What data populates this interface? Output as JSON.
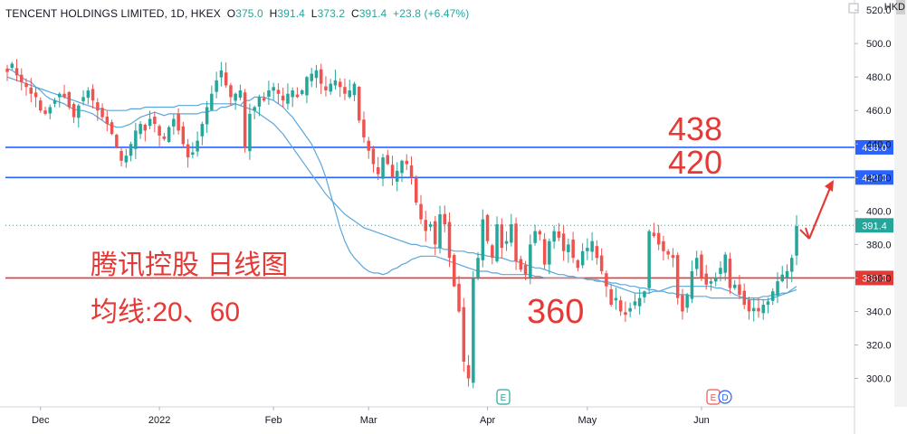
{
  "header": {
    "symbol": "TENCENT HOLDINGS LIMITED, 1D, HKEX",
    "o_label": "O",
    "o_value": "375.0",
    "h_label": "H",
    "h_value": "391.4",
    "l_label": "L",
    "l_value": "373.2",
    "c_label": "C",
    "c_value": "391.4",
    "change": "+23.8 (+6.47%)"
  },
  "currency": "HKD",
  "annotations": {
    "level_high": "438",
    "level_mid": "420",
    "level_low": "360",
    "title": "腾讯控股 日线图",
    "ma_note": "均线:20、60"
  },
  "colors": {
    "up": "#26a69a",
    "down": "#ef5350",
    "ma": "#5ba7dc",
    "resistance": "#2962ff",
    "support": "#e53935",
    "annotation": "#e53935"
  },
  "event_markers": [
    "E",
    "E",
    "D"
  ],
  "chart_data": {
    "type": "candlestick",
    "symbol": "TENCENT HOLDINGS LIMITED",
    "interval": "1D",
    "exchange": "HKEX",
    "x_ticks": [
      "Dec",
      "2022",
      "Feb",
      "Mar",
      "Apr",
      "May",
      "Jun"
    ],
    "y_ticks": [
      300,
      320,
      340,
      360,
      380,
      400,
      420,
      440,
      460,
      480,
      500,
      520
    ],
    "ylim": [
      283,
      526
    ],
    "last_price": "391.4",
    "horizontal_levels": [
      {
        "value": 438,
        "label": "438.0",
        "color": "#2962ff"
      },
      {
        "value": 420,
        "label": "420.0",
        "color": "#2962ff"
      },
      {
        "value": 360,
        "label": "360.0",
        "color": "#e53935"
      }
    ],
    "moving_averages": [
      20,
      60
    ],
    "closes": [
      483,
      488,
      481,
      477,
      474,
      470,
      468,
      460,
      458,
      462,
      466,
      470,
      468,
      462,
      456,
      463,
      468,
      472,
      466,
      460,
      456,
      452,
      446,
      438,
      430,
      433,
      440,
      448,
      452,
      448,
      455,
      452,
      445,
      443,
      450,
      455,
      448,
      440,
      432,
      435,
      442,
      452,
      462,
      470,
      478,
      484,
      475,
      468,
      470,
      472,
      438,
      458,
      462,
      468,
      466,
      472,
      474,
      470,
      466,
      470,
      472,
      468,
      472,
      480,
      482,
      484,
      476,
      472,
      476,
      478,
      474,
      470,
      472,
      476,
      454,
      444,
      436,
      428,
      422,
      432,
      428,
      420,
      424,
      430,
      428,
      420,
      405,
      395,
      388,
      392,
      380,
      398,
      392,
      372,
      355,
      340,
      310,
      300,
      360,
      372,
      395,
      382,
      372,
      392,
      378,
      382,
      392,
      370,
      365,
      362,
      380,
      388,
      386,
      368,
      382,
      388,
      384,
      376,
      380,
      372,
      366,
      376,
      378,
      382,
      372,
      364,
      355,
      344,
      348,
      340,
      338,
      342,
      346,
      348,
      352,
      388,
      385,
      380,
      376,
      374,
      372,
      348,
      340,
      350,
      364,
      372,
      360,
      356,
      358,
      360,
      366,
      374,
      354,
      356,
      350,
      344,
      340,
      342,
      340,
      344,
      346,
      352,
      358,
      362,
      364,
      372,
      391
    ],
    "ma20": [
      485,
      484,
      482,
      480,
      478,
      477,
      474,
      472,
      469,
      467,
      466,
      465,
      464,
      462,
      461,
      460,
      460,
      459,
      458,
      456,
      454,
      452,
      451,
      450,
      450,
      451,
      452,
      454,
      456,
      457,
      458,
      459,
      458,
      457,
      458,
      458,
      458,
      458,
      458,
      458,
      458,
      459,
      459,
      460,
      460,
      462,
      462,
      463,
      464,
      463,
      466,
      466,
      468,
      468,
      468,
      467,
      466,
      464,
      462,
      459,
      456,
      452,
      448,
      444,
      440,
      434,
      428,
      420,
      410,
      400,
      390,
      382,
      376,
      372,
      369,
      366,
      364,
      363,
      363,
      362,
      363,
      365,
      366,
      368,
      369,
      371,
      372,
      373,
      373,
      373,
      373,
      372,
      371,
      370,
      369,
      368,
      367,
      366,
      365,
      364,
      364,
      364,
      363,
      363,
      362,
      362,
      362,
      362,
      362,
      362,
      362,
      361,
      361,
      360,
      360,
      360,
      360,
      360,
      360,
      360,
      360,
      360,
      359,
      359,
      358,
      358,
      357,
      356,
      355,
      354,
      353,
      352,
      351,
      351,
      351,
      351,
      352,
      352,
      353,
      354,
      355,
      355,
      355,
      355,
      355,
      355,
      355,
      355,
      355,
      354,
      354,
      353,
      352,
      350,
      349,
      348,
      347,
      347,
      347,
      347,
      347,
      348,
      349,
      350,
      351,
      353,
      355
    ],
    "ma60": [
      480,
      479,
      478,
      477,
      476,
      475,
      474,
      473,
      472,
      471,
      470,
      469,
      468,
      467,
      466,
      465,
      464,
      463,
      462,
      461,
      461,
      460,
      460,
      460,
      460,
      460,
      461,
      461,
      461,
      462,
      462,
      462,
      462,
      462,
      462,
      462,
      463,
      463,
      463,
      463,
      463,
      464,
      464,
      464,
      464,
      464,
      464,
      464,
      464,
      463,
      462,
      461,
      460,
      458,
      456,
      454,
      452,
      449,
      446,
      442,
      438,
      434,
      430,
      426,
      422,
      418,
      414,
      410,
      407,
      404,
      401,
      398,
      396,
      394,
      392,
      390,
      389,
      388,
      387,
      386,
      385,
      384,
      383,
      382,
      381,
      380,
      380,
      379,
      379,
      378,
      378,
      378,
      377,
      377,
      376,
      376,
      376,
      375,
      375,
      374,
      374,
      373,
      373,
      372,
      372,
      371,
      370,
      370,
      369,
      368,
      367,
      366,
      366,
      365,
      364,
      363,
      362,
      362,
      361,
      361,
      360,
      360,
      359,
      359,
      359,
      358,
      358,
      357,
      357,
      356,
      356,
      355,
      355,
      354,
      354,
      353,
      353,
      352,
      352,
      351,
      351,
      350,
      350,
      350,
      349,
      349,
      349,
      349,
      348,
      348,
      348,
      348,
      348,
      348,
      348,
      348,
      348,
      348,
      348,
      349,
      349,
      350,
      350,
      351,
      351,
      352,
      353
    ]
  }
}
